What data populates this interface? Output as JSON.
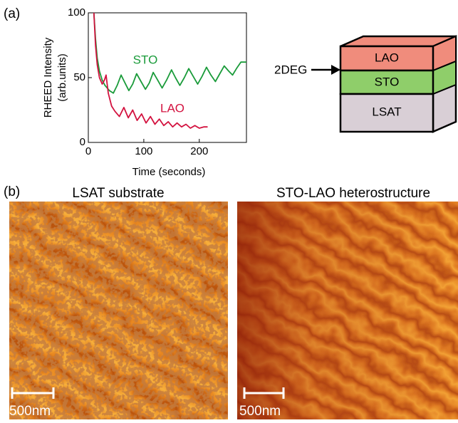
{
  "panels": {
    "a": "(a)",
    "b": "(b)"
  },
  "chart_data": {
    "type": "line",
    "xlabel": "Time (seconds)",
    "ylabel": [
      "RHEED Intensity",
      "(arb.units)"
    ],
    "xlim": [
      0,
      285
    ],
    "xticks": [
      0,
      100,
      200
    ],
    "ylim": [
      0,
      100
    ],
    "yticks": [
      0,
      50,
      100
    ],
    "series": [
      {
        "name": "STO",
        "color": "#1a9b3a",
        "x": [
          10,
          13,
          16,
          20,
          25,
          30,
          38,
          45,
          52,
          59,
          66,
          73,
          80,
          87,
          95,
          103,
          110,
          117,
          125,
          133,
          141,
          150,
          157,
          165,
          173,
          181,
          189,
          197,
          205,
          213,
          221,
          229,
          237,
          245,
          253,
          260,
          267,
          275,
          280,
          285
        ],
        "values": [
          100,
          80,
          65,
          55,
          48,
          44,
          40,
          38,
          44,
          52,
          46,
          40,
          45,
          53,
          47,
          41,
          46,
          54,
          48,
          42,
          48,
          56,
          50,
          44,
          50,
          57,
          51,
          45,
          51,
          58,
          52,
          47,
          53,
          59,
          55,
          52,
          57,
          62,
          62,
          62
        ]
      },
      {
        "name": "LAO",
        "color": "#d3123f",
        "x": [
          10,
          13,
          16,
          20,
          25,
          29,
          32,
          36,
          42,
          48,
          56,
          64,
          72,
          80,
          88,
          96,
          104,
          112,
          120,
          128,
          136,
          144,
          152,
          160,
          168,
          176,
          184,
          192,
          200,
          208,
          215
        ],
        "values": [
          100,
          75,
          60,
          50,
          45,
          48,
          52,
          38,
          28,
          24,
          20,
          27,
          19,
          25,
          17,
          22,
          15,
          20,
          14,
          18,
          13,
          16,
          12,
          15,
          12,
          14,
          11,
          13,
          11,
          12,
          12
        ]
      }
    ]
  },
  "diagram": {
    "layers": [
      "LAO",
      "STO",
      "LSAT"
    ],
    "interface_label": "2DEG"
  },
  "images": [
    {
      "title": "LSAT substrate",
      "scale_bar": "500nm"
    },
    {
      "title": "STO-LAO heterostructure",
      "scale_bar": "500nm"
    }
  ]
}
